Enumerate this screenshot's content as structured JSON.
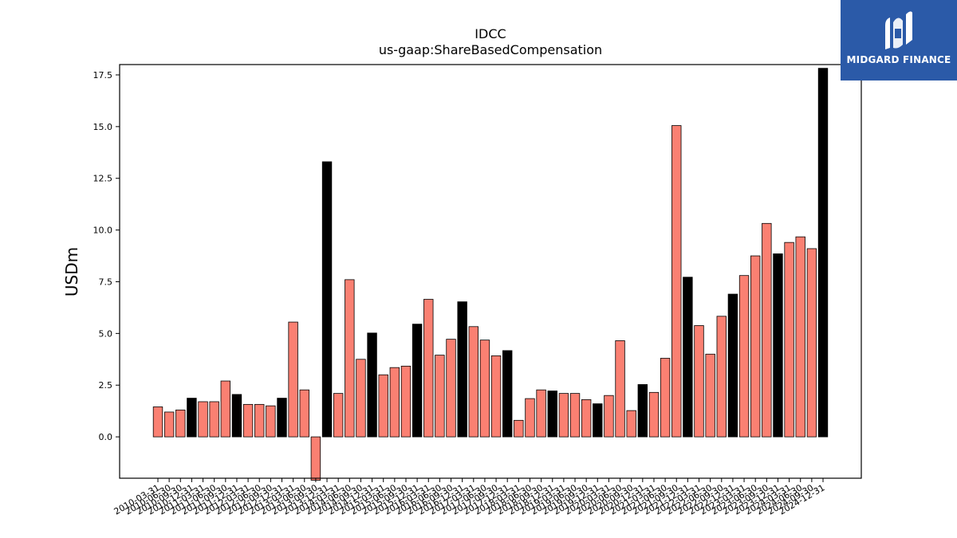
{
  "chart_data": {
    "type": "bar",
    "title": "IDCC",
    "subtitle": "us-gaap:ShareBasedCompensation",
    "xlabel": "",
    "ylabel": "USDm",
    "ylim": [
      -2.0,
      18.0
    ],
    "yticks": [
      0.0,
      2.5,
      5.0,
      7.5,
      10.0,
      12.5,
      15.0,
      17.5
    ],
    "ytick_labels": [
      "0.0",
      "2.5",
      "5.0",
      "7.5",
      "10.0",
      "12.5",
      "15.0",
      "17.5"
    ],
    "grid": false,
    "legend": "none",
    "categories": [
      "2010-03-31",
      "2010-06-30",
      "2010-09-30",
      "2010-12-31",
      "2011-03-31",
      "2011-06-30",
      "2011-09-30",
      "2011-12-31",
      "2012-03-31",
      "2012-06-30",
      "2012-09-30",
      "2012-12-31",
      "2013-03-31",
      "2013-06-30",
      "2013-09-30",
      "2013-12-31",
      "2014-03-31",
      "2014-06-30",
      "2014-09-30",
      "2014-12-31",
      "2015-03-31",
      "2015-06-30",
      "2015-09-30",
      "2015-12-31",
      "2016-03-31",
      "2016-06-30",
      "2016-09-30",
      "2016-12-31",
      "2017-03-31",
      "2017-06-30",
      "2017-09-30",
      "2017-12-31",
      "2018-03-31",
      "2018-06-30",
      "2018-09-30",
      "2018-12-31",
      "2019-03-31",
      "2019-06-30",
      "2019-09-30",
      "2019-12-31",
      "2020-03-31",
      "2020-06-30",
      "2020-09-30",
      "2020-12-31",
      "2021-03-31",
      "2021-06-30",
      "2021-09-30",
      "2021-12-31",
      "2022-03-31",
      "2022-06-30",
      "2022-09-30",
      "2022-12-31",
      "2023-03-31",
      "2023-06-30",
      "2023-09-30",
      "2023-12-31",
      "2024-03-31",
      "2024-06-30",
      "2024-09-30",
      "2024-12-31"
    ],
    "values": [
      1.45,
      1.2,
      1.3,
      1.87,
      1.7,
      1.7,
      2.7,
      2.05,
      1.57,
      1.57,
      1.5,
      1.87,
      5.55,
      2.27,
      -2.1,
      13.3,
      2.1,
      7.6,
      3.75,
      5.02,
      3.0,
      3.35,
      3.42,
      5.45,
      6.65,
      3.95,
      4.72,
      6.53,
      5.33,
      4.68,
      3.92,
      4.17,
      0.8,
      1.85,
      2.27,
      2.22,
      2.1,
      2.1,
      1.8,
      1.6,
      2.0,
      4.65,
      1.27,
      2.53,
      2.15,
      3.8,
      15.05,
      7.72,
      5.38,
      4.0,
      5.83,
      6.9,
      7.8,
      8.75,
      10.32,
      8.85,
      9.4,
      9.67,
      9.1,
      17.82
    ],
    "highlight_every": 4,
    "colors": {
      "normal": "#fa8072",
      "highlight": "#000000",
      "edge": "#000000"
    }
  },
  "logo": {
    "text": "MIDGARD FINANCE",
    "bg": "#2b5aa8"
  }
}
